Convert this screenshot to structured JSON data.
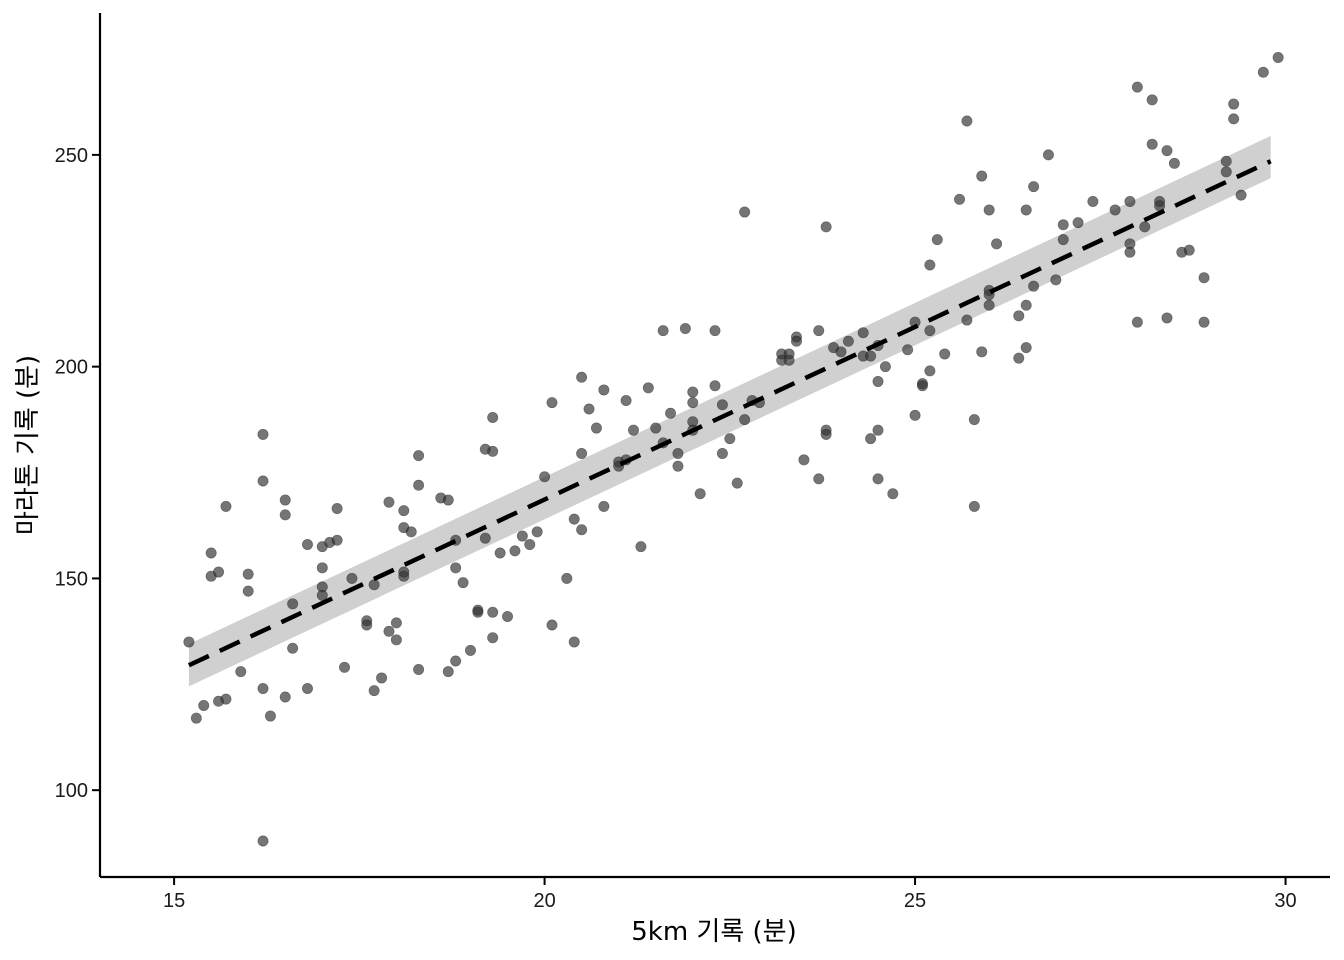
{
  "chart_data": {
    "type": "scatter",
    "title": "",
    "xlabel": "5km 기록 (분)",
    "ylabel": "마라톤 기록 (분)",
    "xlim": [
      14.0,
      30.6
    ],
    "ylim": [
      79.5,
      283.5
    ],
    "x_ticks": [
      15,
      20,
      25,
      30
    ],
    "y_ticks": [
      100,
      150,
      200,
      250
    ],
    "grid": false,
    "legend": "none",
    "colors": {
      "points": "#333333",
      "trend_line": "#000000",
      "confidence_band": "#c8c8c8",
      "axis": "#000000"
    },
    "trend_line": {
      "style": "dashed",
      "x": [
        15.2,
        29.8
      ],
      "y": [
        129.5,
        248.5
      ]
    },
    "confidence_band": {
      "x": [
        15.2,
        29.8
      ],
      "lower": [
        124.5,
        244.5
      ],
      "upper": [
        134.5,
        254.5
      ]
    },
    "points": [
      [
        15.2,
        135.0
      ],
      [
        15.3,
        117.0
      ],
      [
        15.4,
        120.0
      ],
      [
        15.5,
        156.0
      ],
      [
        15.5,
        150.5
      ],
      [
        15.6,
        151.5
      ],
      [
        15.6,
        121.0
      ],
      [
        15.7,
        121.5
      ],
      [
        15.7,
        167.0
      ],
      [
        15.9,
        128.0
      ],
      [
        16.0,
        151.0
      ],
      [
        16.0,
        147.0
      ],
      [
        16.2,
        184.0
      ],
      [
        16.2,
        173.0
      ],
      [
        16.2,
        124.0
      ],
      [
        16.2,
        88.0
      ],
      [
        16.3,
        117.5
      ],
      [
        16.5,
        168.5
      ],
      [
        16.5,
        165.0
      ],
      [
        16.5,
        122.0
      ],
      [
        16.6,
        144.0
      ],
      [
        16.6,
        133.5
      ],
      [
        16.8,
        158.0
      ],
      [
        16.8,
        124.0
      ],
      [
        17.0,
        157.5
      ],
      [
        17.0,
        152.5
      ],
      [
        17.0,
        148.0
      ],
      [
        17.0,
        146.0
      ],
      [
        17.1,
        158.5
      ],
      [
        17.2,
        166.5
      ],
      [
        17.2,
        159.0
      ],
      [
        17.3,
        129.0
      ],
      [
        17.4,
        150.0
      ],
      [
        17.6,
        140.0
      ],
      [
        17.6,
        139.0
      ],
      [
        17.7,
        148.5
      ],
      [
        17.7,
        123.5
      ],
      [
        17.8,
        126.5
      ],
      [
        17.9,
        168.0
      ],
      [
        17.9,
        137.5
      ],
      [
        18.0,
        139.5
      ],
      [
        18.0,
        135.5
      ],
      [
        18.1,
        166.0
      ],
      [
        18.1,
        162.0
      ],
      [
        18.1,
        151.5
      ],
      [
        18.1,
        150.5
      ],
      [
        18.2,
        161.0
      ],
      [
        18.3,
        179.0
      ],
      [
        18.3,
        172.0
      ],
      [
        18.3,
        128.5
      ],
      [
        18.6,
        169.0
      ],
      [
        18.7,
        168.5
      ],
      [
        18.7,
        128.0
      ],
      [
        18.8,
        159.0
      ],
      [
        18.8,
        152.5
      ],
      [
        18.8,
        130.5
      ],
      [
        18.9,
        149.0
      ],
      [
        19.0,
        133.0
      ],
      [
        19.1,
        142.5
      ],
      [
        19.1,
        142.0
      ],
      [
        19.2,
        180.5
      ],
      [
        19.2,
        159.5
      ],
      [
        19.3,
        188.0
      ],
      [
        19.3,
        180.0
      ],
      [
        19.3,
        142.0
      ],
      [
        19.3,
        136.0
      ],
      [
        19.4,
        156.0
      ],
      [
        19.5,
        141.0
      ],
      [
        19.6,
        156.5
      ],
      [
        19.7,
        160.0
      ],
      [
        19.8,
        158.0
      ],
      [
        19.9,
        161.0
      ],
      [
        20.0,
        174.0
      ],
      [
        20.1,
        191.5
      ],
      [
        20.1,
        139.0
      ],
      [
        20.3,
        150.0
      ],
      [
        20.4,
        164.0
      ],
      [
        20.4,
        135.0
      ],
      [
        20.5,
        197.5
      ],
      [
        20.5,
        179.5
      ],
      [
        20.5,
        161.5
      ],
      [
        20.6,
        190.0
      ],
      [
        20.7,
        185.5
      ],
      [
        20.8,
        194.5
      ],
      [
        20.8,
        167.0
      ],
      [
        21.0,
        177.5
      ],
      [
        21.0,
        176.5
      ],
      [
        21.1,
        192.0
      ],
      [
        21.1,
        178.0
      ],
      [
        21.2,
        185.0
      ],
      [
        21.3,
        157.5
      ],
      [
        21.4,
        195.0
      ],
      [
        21.5,
        185.5
      ],
      [
        21.6,
        208.5
      ],
      [
        21.6,
        182.0
      ],
      [
        21.7,
        189.0
      ],
      [
        21.8,
        179.5
      ],
      [
        21.8,
        176.5
      ],
      [
        21.9,
        209.0
      ],
      [
        22.0,
        194.0
      ],
      [
        22.0,
        191.5
      ],
      [
        22.0,
        187.0
      ],
      [
        22.0,
        185.0
      ],
      [
        22.1,
        170.0
      ],
      [
        22.3,
        208.5
      ],
      [
        22.3,
        195.5
      ],
      [
        22.4,
        191.0
      ],
      [
        22.4,
        179.5
      ],
      [
        22.5,
        183.0
      ],
      [
        22.6,
        172.5
      ],
      [
        22.7,
        236.5
      ],
      [
        22.7,
        187.5
      ],
      [
        22.8,
        192.0
      ],
      [
        22.9,
        191.5
      ],
      [
        23.2,
        203.0
      ],
      [
        23.2,
        201.5
      ],
      [
        23.3,
        203.0
      ],
      [
        23.3,
        201.5
      ],
      [
        23.4,
        207.0
      ],
      [
        23.4,
        206.0
      ],
      [
        23.5,
        178.0
      ],
      [
        23.7,
        208.5
      ],
      [
        23.7,
        173.5
      ],
      [
        23.8,
        233.0
      ],
      [
        23.8,
        185.0
      ],
      [
        23.8,
        184.0
      ],
      [
        23.9,
        204.5
      ],
      [
        24.0,
        203.5
      ],
      [
        24.1,
        206.0
      ],
      [
        24.3,
        208.0
      ],
      [
        24.3,
        202.5
      ],
      [
        24.4,
        202.5
      ],
      [
        24.4,
        183.0
      ],
      [
        24.5,
        205.0
      ],
      [
        24.5,
        196.5
      ],
      [
        24.5,
        185.0
      ],
      [
        24.5,
        173.5
      ],
      [
        24.6,
        200.0
      ],
      [
        24.7,
        170.0
      ],
      [
        24.9,
        204.0
      ],
      [
        25.0,
        210.5
      ],
      [
        25.0,
        188.5
      ],
      [
        25.1,
        196.0
      ],
      [
        25.1,
        195.5
      ],
      [
        25.2,
        224.0
      ],
      [
        25.2,
        208.5
      ],
      [
        25.2,
        199.0
      ],
      [
        25.3,
        230.0
      ],
      [
        25.4,
        203.0
      ],
      [
        25.6,
        239.5
      ],
      [
        25.7,
        258.0
      ],
      [
        25.7,
        211.0
      ],
      [
        25.8,
        187.5
      ],
      [
        25.8,
        167.0
      ],
      [
        25.9,
        245.0
      ],
      [
        25.9,
        203.5
      ],
      [
        26.0,
        237.0
      ],
      [
        26.0,
        218.0
      ],
      [
        26.0,
        217.0
      ],
      [
        26.0,
        214.5
      ],
      [
        26.1,
        229.0
      ],
      [
        26.4,
        212.0
      ],
      [
        26.4,
        202.0
      ],
      [
        26.5,
        237.0
      ],
      [
        26.5,
        214.5
      ],
      [
        26.5,
        204.5
      ],
      [
        26.6,
        242.5
      ],
      [
        26.6,
        219.0
      ],
      [
        26.8,
        250.0
      ],
      [
        26.9,
        220.5
      ],
      [
        27.0,
        233.5
      ],
      [
        27.0,
        230.0
      ],
      [
        27.2,
        234.0
      ],
      [
        27.4,
        239.0
      ],
      [
        27.7,
        237.0
      ],
      [
        27.9,
        239.0
      ],
      [
        27.9,
        229.0
      ],
      [
        27.9,
        227.0
      ],
      [
        28.0,
        266.0
      ],
      [
        28.0,
        210.5
      ],
      [
        28.1,
        233.0
      ],
      [
        28.2,
        263.0
      ],
      [
        28.2,
        252.5
      ],
      [
        28.3,
        239.0
      ],
      [
        28.3,
        238.0
      ],
      [
        28.4,
        251.0
      ],
      [
        28.4,
        211.5
      ],
      [
        28.5,
        248.0
      ],
      [
        28.6,
        227.0
      ],
      [
        28.7,
        227.5
      ],
      [
        28.9,
        221.0
      ],
      [
        28.9,
        210.5
      ],
      [
        29.2,
        248.5
      ],
      [
        29.2,
        246.0
      ],
      [
        29.3,
        262.0
      ],
      [
        29.3,
        258.5
      ],
      [
        29.4,
        240.5
      ],
      [
        29.7,
        269.5
      ],
      [
        29.9,
        273.0
      ]
    ]
  }
}
